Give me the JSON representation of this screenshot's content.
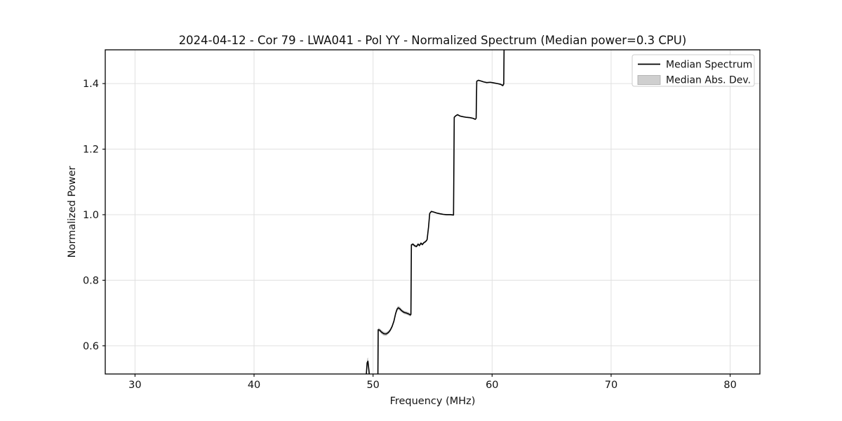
{
  "chart_data": {
    "type": "line",
    "title": "2024-04-12 - Cor 79 - LWA041 - Pol YY - Normalized Spectrum (Median power=0.3 CPU)",
    "xlabel": "Frequency (MHz)",
    "ylabel": "Normalized Power",
    "xlim": [
      27.5,
      82.5
    ],
    "ylim": [
      0.514,
      1.503
    ],
    "xticks": [
      30,
      40,
      50,
      60,
      70,
      80
    ],
    "xtick_labels": [
      "30",
      "40",
      "50",
      "60",
      "70",
      "80"
    ],
    "yticks": [
      0.6,
      0.8,
      1.0,
      1.2,
      1.4
    ],
    "ytick_labels": [
      "0.6",
      "0.8",
      "1.0",
      "1.2",
      "1.4"
    ],
    "grid": true,
    "colors": {
      "line": "#000000",
      "band": "#bcbcbc",
      "grid": "#e0e0e0",
      "spine": "#000000",
      "legend_border": "#cccccc",
      "legend_patch_fill": "#cfcfcf",
      "legend_patch_edge": "#ababab"
    },
    "legend": {
      "position": "upper right",
      "entries": [
        {
          "label": "Median Spectrum",
          "swatch": "line"
        },
        {
          "label": "Median Abs. Dev.",
          "swatch": "patch"
        }
      ]
    },
    "series": [
      {
        "name": "Median Spectrum",
        "point_format": [
          "freq_mhz",
          "power",
          "abs_dev"
        ],
        "points": [
          [
            49.32,
            0.468,
            0.01
          ],
          [
            49.42,
            0.505,
            0.01
          ],
          [
            49.5,
            0.548,
            0.012
          ],
          [
            49.57,
            0.553,
            0.012
          ],
          [
            49.66,
            0.522,
            0.01
          ],
          [
            49.78,
            0.47,
            0.009
          ],
          [
            49.88,
            0.44,
            0.008
          ],
          [
            50.1,
            0.43,
            0.008
          ],
          [
            50.34,
            0.438,
            0.008
          ],
          [
            50.4,
            0.47,
            0.007
          ],
          [
            50.43,
            0.649,
            0.006
          ],
          [
            50.55,
            0.648,
            0.005
          ],
          [
            50.7,
            0.642,
            0.006
          ],
          [
            50.9,
            0.637,
            0.006
          ],
          [
            51.1,
            0.636,
            0.006
          ],
          [
            51.3,
            0.641,
            0.005
          ],
          [
            51.45,
            0.648,
            0.005
          ],
          [
            51.6,
            0.659,
            0.005
          ],
          [
            51.75,
            0.675,
            0.006
          ],
          [
            51.9,
            0.699,
            0.006
          ],
          [
            52.02,
            0.712,
            0.006
          ],
          [
            52.12,
            0.716,
            0.006
          ],
          [
            52.25,
            0.713,
            0.006
          ],
          [
            52.4,
            0.707,
            0.005
          ],
          [
            52.6,
            0.702,
            0.005
          ],
          [
            52.8,
            0.7,
            0.005
          ],
          [
            53.0,
            0.697,
            0.005
          ],
          [
            53.14,
            0.694,
            0.005
          ],
          [
            53.18,
            0.696,
            0.004
          ],
          [
            53.22,
            0.908,
            0.004
          ],
          [
            53.35,
            0.91,
            0.004
          ],
          [
            53.5,
            0.905,
            0.004
          ],
          [
            53.65,
            0.903,
            0.004
          ],
          [
            53.78,
            0.91,
            0.004
          ],
          [
            53.9,
            0.906,
            0.004
          ],
          [
            54.02,
            0.913,
            0.004
          ],
          [
            54.14,
            0.909,
            0.004
          ],
          [
            54.28,
            0.915,
            0.003
          ],
          [
            54.42,
            0.918,
            0.003
          ],
          [
            54.54,
            0.924,
            0.003
          ],
          [
            54.66,
            0.962,
            0.003
          ],
          [
            54.76,
            1.004,
            0.003
          ],
          [
            54.9,
            1.01,
            0.002
          ],
          [
            55.1,
            1.008,
            0.002
          ],
          [
            55.35,
            1.005,
            0.002
          ],
          [
            55.6,
            1.003,
            0.002
          ],
          [
            55.9,
            1.001,
            0.002
          ],
          [
            56.2,
            1.0,
            0.002
          ],
          [
            56.5,
            1.0,
            0.002
          ],
          [
            56.76,
            0.999,
            0.002
          ],
          [
            56.82,
            1.297,
            0.002
          ],
          [
            56.95,
            1.302,
            0.002
          ],
          [
            57.1,
            1.305,
            0.002
          ],
          [
            57.3,
            1.301,
            0.002
          ],
          [
            57.55,
            1.299,
            0.0015
          ],
          [
            57.85,
            1.297,
            0.0015
          ],
          [
            58.15,
            1.296,
            0.0015
          ],
          [
            58.4,
            1.294,
            0.0015
          ],
          [
            58.58,
            1.291,
            0.0015
          ],
          [
            58.66,
            1.294,
            0.0015
          ],
          [
            58.71,
            1.407,
            0.0015
          ],
          [
            58.85,
            1.41,
            0.0015
          ],
          [
            59.05,
            1.408,
            0.0015
          ],
          [
            59.3,
            1.405,
            0.0015
          ],
          [
            59.55,
            1.403,
            0.0015
          ],
          [
            59.85,
            1.404,
            0.0015
          ],
          [
            60.15,
            1.402,
            0.0015
          ],
          [
            60.45,
            1.4,
            0.0015
          ],
          [
            60.7,
            1.398,
            0.002
          ],
          [
            60.9,
            1.394,
            0.003
          ],
          [
            60.98,
            1.399,
            0.004
          ],
          [
            61.02,
            1.56,
            0.006
          ]
        ]
      },
      {
        "name": "Median Abs. Dev.",
        "type": "band",
        "derived_from": "median power ± abs_dev"
      }
    ]
  }
}
